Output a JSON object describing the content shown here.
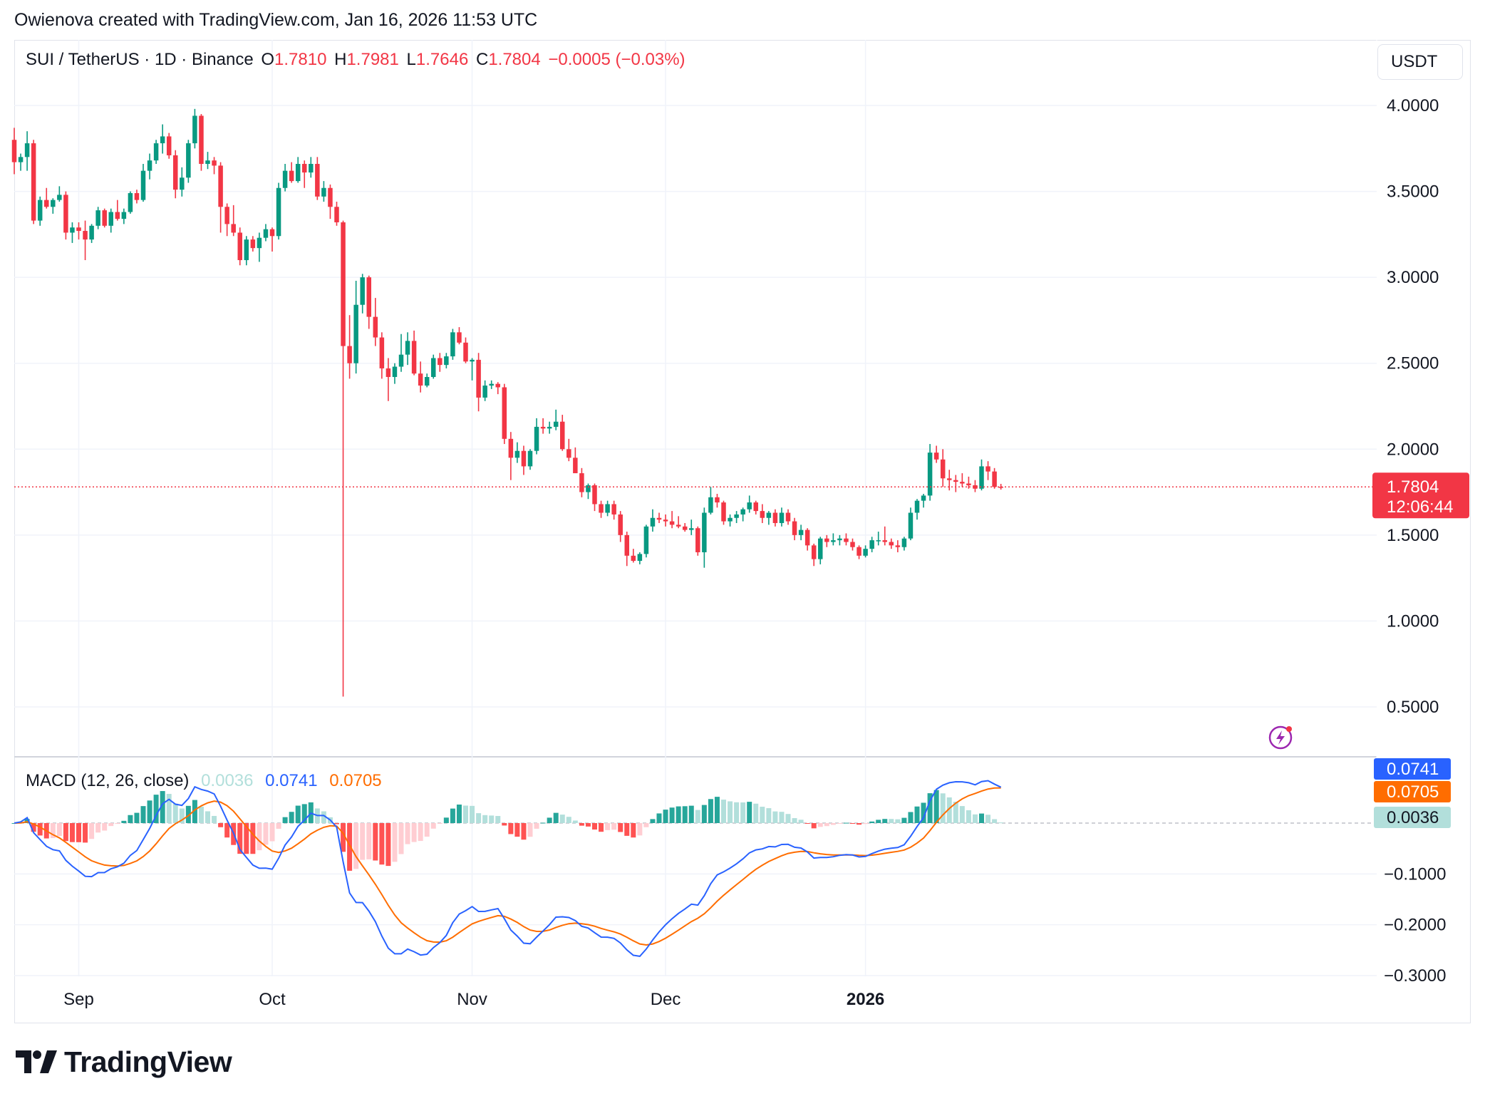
{
  "caption": "Owienova created with TradingView.com, Jan 16, 2026 11:53 UTC",
  "legend": {
    "symbol": "SUI / TetherUS · 1D · Binance",
    "o_label": "O",
    "o_value": "1.7810",
    "h_label": "H",
    "h_value": "1.7981",
    "l_label": "L",
    "l_value": "1.7646",
    "c_label": "C",
    "c_value": "1.7804",
    "change": "−0.0005 (−0.03%)"
  },
  "currency": "USDT",
  "price_label": {
    "price": "1.7804",
    "countdown": "12:06:44"
  },
  "macd_legend": {
    "name": "MACD (12, 26, close)",
    "hist": "0.0036",
    "macd": "0.0741",
    "signal": "0.0705"
  },
  "macd_badges": {
    "macd": "0.0741",
    "signal": "0.0705",
    "hist": "0.0036"
  },
  "price_axis_ticks": [
    "4.0000",
    "3.5000",
    "3.0000",
    "2.5000",
    "2.0000",
    "1.5000",
    "1.0000",
    "0.5000"
  ],
  "macd_axis_ticks": [
    "−0.1000",
    "−0.2000",
    "−0.3000"
  ],
  "x_axis_ticks": [
    "Sep",
    "Oct",
    "Nov",
    "Dec",
    "2026"
  ],
  "logo_text": "TradingView",
  "colors": {
    "up": "#089981",
    "down": "#f23645",
    "macd": "#2962ff",
    "signal": "#ff6d00",
    "hist_up_strong": "#26a69a",
    "hist_up_weak": "#b2dfdb",
    "hist_down_strong": "#ff5252",
    "hist_down_weak": "#ffcdd2"
  },
  "chart_data": [
    {
      "type": "candlestick",
      "title": "SUI / TetherUS · 1D · Binance",
      "ylim": [
        0.5,
        4.0
      ],
      "x_start": "2025-08-22",
      "x_end": "2026-01-16",
      "candles": [
        [
          3.8,
          3.87,
          3.6,
          3.67
        ],
        [
          3.67,
          3.72,
          3.62,
          3.7
        ],
        [
          3.7,
          3.85,
          3.62,
          3.78
        ],
        [
          3.78,
          3.8,
          3.31,
          3.33
        ],
        [
          3.33,
          3.47,
          3.3,
          3.45
        ],
        [
          3.45,
          3.52,
          3.4,
          3.41
        ],
        [
          3.41,
          3.46,
          3.37,
          3.45
        ],
        [
          3.45,
          3.53,
          3.44,
          3.48
        ],
        [
          3.48,
          3.5,
          3.22,
          3.26
        ],
        [
          3.26,
          3.32,
          3.2,
          3.29
        ],
        [
          3.29,
          3.32,
          3.22,
          3.27
        ],
        [
          3.27,
          3.33,
          3.1,
          3.22
        ],
        [
          3.22,
          3.31,
          3.2,
          3.3
        ],
        [
          3.3,
          3.41,
          3.28,
          3.39
        ],
        [
          3.39,
          3.4,
          3.29,
          3.3
        ],
        [
          3.3,
          3.4,
          3.26,
          3.38
        ],
        [
          3.38,
          3.45,
          3.33,
          3.34
        ],
        [
          3.34,
          3.4,
          3.31,
          3.38
        ],
        [
          3.38,
          3.5,
          3.37,
          3.49
        ],
        [
          3.49,
          3.51,
          3.43,
          3.45
        ],
        [
          3.45,
          3.66,
          3.44,
          3.62
        ],
        [
          3.62,
          3.72,
          3.57,
          3.68
        ],
        [
          3.68,
          3.8,
          3.66,
          3.78
        ],
        [
          3.78,
          3.89,
          3.72,
          3.82
        ],
        [
          3.82,
          3.84,
          3.69,
          3.71
        ],
        [
          3.71,
          3.74,
          3.46,
          3.51
        ],
        [
          3.51,
          3.64,
          3.47,
          3.58
        ],
        [
          3.58,
          3.8,
          3.55,
          3.78
        ],
        [
          3.78,
          3.98,
          3.75,
          3.94
        ],
        [
          3.94,
          3.95,
          3.62,
          3.66
        ],
        [
          3.66,
          3.73,
          3.63,
          3.68
        ],
        [
          3.68,
          3.7,
          3.6,
          3.65
        ],
        [
          3.65,
          3.67,
          3.26,
          3.41
        ],
        [
          3.41,
          3.43,
          3.24,
          3.31
        ],
        [
          3.31,
          3.42,
          3.24,
          3.26
        ],
        [
          3.26,
          3.29,
          3.07,
          3.1
        ],
        [
          3.1,
          3.24,
          3.07,
          3.22
        ],
        [
          3.22,
          3.24,
          3.15,
          3.17
        ],
        [
          3.17,
          3.26,
          3.09,
          3.23
        ],
        [
          3.23,
          3.31,
          3.21,
          3.28
        ],
        [
          3.28,
          3.29,
          3.15,
          3.24
        ],
        [
          3.24,
          3.55,
          3.22,
          3.52
        ],
        [
          3.52,
          3.66,
          3.5,
          3.62
        ],
        [
          3.62,
          3.67,
          3.55,
          3.56
        ],
        [
          3.56,
          3.7,
          3.55,
          3.66
        ],
        [
          3.66,
          3.68,
          3.52,
          3.61
        ],
        [
          3.61,
          3.7,
          3.58,
          3.66
        ],
        [
          3.66,
          3.7,
          3.45,
          3.47
        ],
        [
          3.47,
          3.56,
          3.44,
          3.52
        ],
        [
          3.52,
          3.54,
          3.34,
          3.41
        ],
        [
          3.41,
          3.44,
          3.3,
          3.32
        ],
        [
          3.32,
          3.33,
          0.56,
          2.6
        ],
        [
          2.6,
          2.78,
          2.41,
          2.5
        ],
        [
          2.5,
          2.98,
          2.44,
          2.84
        ],
        [
          2.84,
          3.02,
          2.79,
          3.0
        ],
        [
          3.0,
          3.01,
          2.7,
          2.77
        ],
        [
          2.77,
          2.88,
          2.6,
          2.65
        ],
        [
          2.65,
          2.68,
          2.41,
          2.47
        ],
        [
          2.47,
          2.53,
          2.28,
          2.42
        ],
        [
          2.42,
          2.5,
          2.38,
          2.48
        ],
        [
          2.48,
          2.67,
          2.45,
          2.55
        ],
        [
          2.55,
          2.68,
          2.49,
          2.63
        ],
        [
          2.63,
          2.69,
          2.43,
          2.44
        ],
        [
          2.44,
          2.51,
          2.33,
          2.37
        ],
        [
          2.37,
          2.44,
          2.36,
          2.42
        ],
        [
          2.42,
          2.55,
          2.41,
          2.53
        ],
        [
          2.53,
          2.56,
          2.45,
          2.49
        ],
        [
          2.49,
          2.56,
          2.47,
          2.54
        ],
        [
          2.54,
          2.7,
          2.52,
          2.68
        ],
        [
          2.68,
          2.71,
          2.61,
          2.62
        ],
        [
          2.62,
          2.65,
          2.5,
          2.51
        ],
        [
          2.51,
          2.53,
          2.4,
          2.52
        ],
        [
          2.52,
          2.56,
          2.22,
          2.3
        ],
        [
          2.3,
          2.4,
          2.28,
          2.37
        ],
        [
          2.37,
          2.4,
          2.35,
          2.38
        ],
        [
          2.38,
          2.39,
          2.32,
          2.36
        ],
        [
          2.36,
          2.38,
          2.03,
          2.06
        ],
        [
          2.06,
          2.1,
          1.82,
          1.95
        ],
        [
          1.95,
          2.04,
          1.92,
          1.99
        ],
        [
          1.99,
          2.02,
          1.85,
          1.9
        ],
        [
          1.9,
          2.0,
          1.88,
          1.99
        ],
        [
          1.99,
          2.18,
          1.97,
          2.13
        ],
        [
          2.13,
          2.18,
          2.09,
          2.12
        ],
        [
          2.12,
          2.16,
          2.09,
          2.13
        ],
        [
          2.13,
          2.23,
          2.11,
          2.16
        ],
        [
          2.16,
          2.2,
          1.99,
          2.0
        ],
        [
          2.0,
          2.06,
          1.93,
          1.95
        ],
        [
          1.95,
          2.01,
          1.87,
          1.86
        ],
        [
          1.86,
          1.89,
          1.72,
          1.75
        ],
        [
          1.75,
          1.8,
          1.71,
          1.79
        ],
        [
          1.79,
          1.8,
          1.64,
          1.68
        ],
        [
          1.68,
          1.7,
          1.6,
          1.63
        ],
        [
          1.63,
          1.7,
          1.61,
          1.68
        ],
        [
          1.68,
          1.7,
          1.59,
          1.62
        ],
        [
          1.62,
          1.64,
          1.46,
          1.5
        ],
        [
          1.5,
          1.52,
          1.32,
          1.38
        ],
        [
          1.38,
          1.42,
          1.34,
          1.35
        ],
        [
          1.35,
          1.4,
          1.33,
          1.39
        ],
        [
          1.39,
          1.56,
          1.37,
          1.55
        ],
        [
          1.55,
          1.65,
          1.52,
          1.6
        ],
        [
          1.6,
          1.63,
          1.57,
          1.59
        ],
        [
          1.59,
          1.62,
          1.55,
          1.58
        ],
        [
          1.58,
          1.64,
          1.54,
          1.56
        ],
        [
          1.56,
          1.61,
          1.54,
          1.55
        ],
        [
          1.55,
          1.57,
          1.52,
          1.53
        ],
        [
          1.53,
          1.59,
          1.5,
          1.54
        ],
        [
          1.54,
          1.55,
          1.38,
          1.4
        ],
        [
          1.4,
          1.66,
          1.31,
          1.63
        ],
        [
          1.63,
          1.78,
          1.62,
          1.72
        ],
        [
          1.72,
          1.74,
          1.66,
          1.69
        ],
        [
          1.69,
          1.7,
          1.56,
          1.58
        ],
        [
          1.58,
          1.62,
          1.55,
          1.6
        ],
        [
          1.6,
          1.64,
          1.57,
          1.62
        ],
        [
          1.62,
          1.66,
          1.58,
          1.65
        ],
        [
          1.65,
          1.73,
          1.63,
          1.69
        ],
        [
          1.69,
          1.7,
          1.62,
          1.64
        ],
        [
          1.64,
          1.68,
          1.57,
          1.6
        ],
        [
          1.6,
          1.64,
          1.56,
          1.63
        ],
        [
          1.63,
          1.65,
          1.55,
          1.57
        ],
        [
          1.57,
          1.66,
          1.55,
          1.63
        ],
        [
          1.63,
          1.65,
          1.56,
          1.58
        ],
        [
          1.58,
          1.6,
          1.47,
          1.5
        ],
        [
          1.5,
          1.56,
          1.47,
          1.53
        ],
        [
          1.53,
          1.54,
          1.41,
          1.44
        ],
        [
          1.44,
          1.45,
          1.32,
          1.36
        ],
        [
          1.36,
          1.49,
          1.33,
          1.48
        ],
        [
          1.48,
          1.5,
          1.43,
          1.46
        ],
        [
          1.46,
          1.51,
          1.44,
          1.47
        ],
        [
          1.47,
          1.5,
          1.44,
          1.48
        ],
        [
          1.48,
          1.51,
          1.44,
          1.46
        ],
        [
          1.46,
          1.48,
          1.41,
          1.43
        ],
        [
          1.43,
          1.44,
          1.36,
          1.38
        ],
        [
          1.38,
          1.44,
          1.37,
          1.42
        ],
        [
          1.42,
          1.49,
          1.4,
          1.47
        ],
        [
          1.47,
          1.52,
          1.44,
          1.47
        ],
        [
          1.47,
          1.55,
          1.44,
          1.46
        ],
        [
          1.46,
          1.48,
          1.42,
          1.44
        ],
        [
          1.44,
          1.47,
          1.4,
          1.43
        ],
        [
          1.43,
          1.49,
          1.41,
          1.48
        ],
        [
          1.48,
          1.66,
          1.47,
          1.63
        ],
        [
          1.63,
          1.71,
          1.59,
          1.7
        ],
        [
          1.7,
          1.74,
          1.66,
          1.73
        ],
        [
          1.73,
          2.03,
          1.7,
          1.98
        ],
        [
          1.98,
          2.02,
          1.92,
          1.94
        ],
        [
          1.94,
          2.0,
          1.78,
          1.83
        ],
        [
          1.83,
          1.88,
          1.76,
          1.82
        ],
        [
          1.82,
          1.85,
          1.75,
          1.81
        ],
        [
          1.81,
          1.86,
          1.78,
          1.8
        ],
        [
          1.8,
          1.84,
          1.77,
          1.79
        ],
        [
          1.79,
          1.82,
          1.75,
          1.77
        ],
        [
          1.77,
          1.94,
          1.76,
          1.9
        ],
        [
          1.9,
          1.93,
          1.82,
          1.87
        ],
        [
          1.87,
          1.89,
          1.77,
          1.78
        ],
        [
          1.781,
          1.7981,
          1.7646,
          1.7804
        ]
      ]
    },
    {
      "type": "macd",
      "title": "MACD (12, 26, close)",
      "ylim": [
        -0.3,
        0.07
      ],
      "latest": {
        "macd": 0.0741,
        "signal": 0.0705,
        "histogram": 0.0036
      }
    }
  ]
}
